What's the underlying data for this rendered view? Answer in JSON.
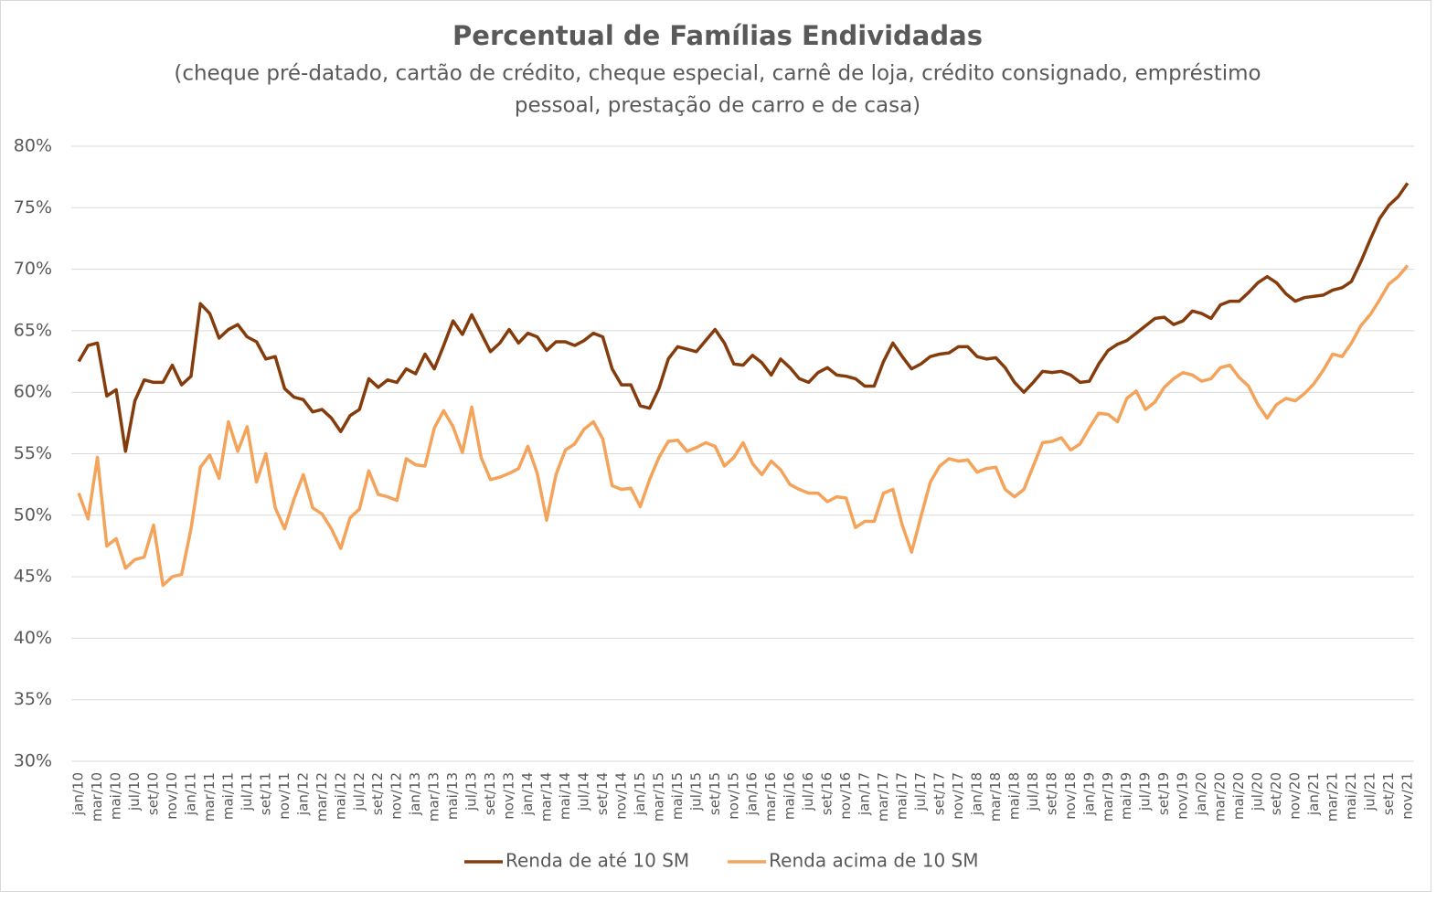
{
  "chart_data": {
    "type": "line",
    "title": "Percentual de Famílias Endividadas",
    "subtitle": [
      "(cheque pré-datado, cartão de crédito, cheque especial, carnê de loja, crédito consignado, empréstimo",
      "pessoal, prestação de carro e de casa)"
    ],
    "categories": [
      "jan/10",
      null,
      "mar/10",
      null,
      "mai/10",
      null,
      "jul/10",
      null,
      "set/10",
      null,
      "nov/10",
      null,
      "jan/11",
      null,
      "mar/11",
      null,
      "mai/11",
      null,
      "jul/11",
      null,
      "set/11",
      null,
      "nov/11",
      null,
      "jan/12",
      null,
      "mar/12",
      null,
      "mai/12",
      null,
      "jul/12",
      null,
      "set/12",
      null,
      "nov/12",
      null,
      "jan/13",
      null,
      "mar/13",
      null,
      "mai/13",
      null,
      "jul/13",
      null,
      "set/13",
      null,
      "nov/13",
      null,
      "jan/14",
      null,
      "mar/14",
      null,
      "mai/14",
      null,
      "jul/14",
      null,
      "set/14",
      null,
      "nov/14",
      null,
      "jan/15",
      null,
      "mar/15",
      null,
      "mai/15",
      null,
      "jul/15",
      null,
      "set/15",
      null,
      "nov/15",
      null,
      "jan/16",
      null,
      "mar/16",
      null,
      "mai/16",
      null,
      "jul/16",
      null,
      "set/16",
      null,
      "nov/16",
      null,
      "jan/17",
      null,
      "mar/17",
      null,
      "mai/17",
      null,
      "jul/17",
      null,
      "set/17",
      null,
      "nov/17",
      null,
      "jan/18",
      null,
      "mar/18",
      null,
      "mai/18",
      null,
      "jul/18",
      null,
      "set/18",
      null,
      "nov/18",
      null,
      "jan/19",
      null,
      "mar/19",
      null,
      "mai/19",
      null,
      "jul/19",
      null,
      "set/19",
      null,
      "nov/19",
      null,
      "jan/20",
      null,
      "mar/20",
      null,
      "mai/20",
      null,
      "jul/20",
      null,
      "set/20",
      null,
      "nov/20",
      null,
      "jan/21",
      null,
      "mar/21",
      null,
      "mai/21",
      null,
      "jul/21",
      null,
      "set/21",
      null,
      "nov/21"
    ],
    "series": [
      {
        "name": "Renda de até 10 SM",
        "color": "#843c0c",
        "values": [
          62.5,
          63.8,
          64.0,
          59.7,
          60.2,
          55.2,
          59.3,
          61.0,
          60.8,
          60.8,
          62.2,
          60.6,
          61.3,
          67.2,
          66.4,
          64.4,
          65.1,
          65.5,
          64.5,
          64.1,
          62.7,
          62.9,
          60.3,
          59.6,
          59.4,
          58.4,
          58.6,
          57.9,
          56.8,
          58.1,
          58.6,
          61.1,
          60.4,
          61.0,
          60.8,
          61.9,
          61.5,
          63.1,
          61.9,
          63.8,
          65.8,
          64.7,
          66.3,
          64.8,
          63.3,
          64.0,
          65.1,
          64.0,
          64.8,
          64.5,
          63.4,
          64.1,
          64.1,
          63.8,
          64.2,
          64.8,
          64.5,
          61.9,
          60.6,
          60.6,
          58.9,
          58.7,
          60.3,
          62.7,
          63.7,
          63.5,
          63.3,
          64.2,
          65.1,
          64.0,
          62.3,
          62.2,
          63.0,
          62.4,
          61.4,
          62.7,
          62.0,
          61.1,
          60.8,
          61.6,
          62.0,
          61.4,
          61.3,
          61.1,
          60.5,
          60.5,
          62.5,
          64.0,
          62.9,
          61.9,
          62.3,
          62.9,
          63.1,
          63.2,
          63.7,
          63.7,
          62.9,
          62.7,
          62.8,
          62.0,
          60.8,
          60.0,
          60.8,
          61.7,
          61.6,
          61.7,
          61.4,
          60.8,
          60.9,
          62.3,
          63.4,
          63.9,
          64.2,
          64.8,
          65.4,
          66.0,
          66.1,
          65.5,
          65.8,
          66.6,
          66.4,
          66.0,
          67.1,
          67.4,
          67.4,
          68.1,
          68.9,
          69.4,
          68.9,
          68.0,
          67.4,
          67.7,
          67.8,
          67.9,
          68.3,
          68.5,
          69.0,
          70.6,
          72.4,
          74.1,
          75.2,
          75.9,
          77.0
        ]
      },
      {
        "name": "Renda acima de 10 SM",
        "color": "#f4a35a",
        "values": [
          51.8,
          49.7,
          54.7,
          47.5,
          48.1,
          45.7,
          46.4,
          46.6,
          49.2,
          44.3,
          45.0,
          45.2,
          48.9,
          53.9,
          54.9,
          53.0,
          57.6,
          55.2,
          57.2,
          52.7,
          55.0,
          50.6,
          48.9,
          51.3,
          53.3,
          50.6,
          50.1,
          48.9,
          47.3,
          49.8,
          50.5,
          53.6,
          51.7,
          51.5,
          51.2,
          54.6,
          54.1,
          54.0,
          57.1,
          58.5,
          57.2,
          55.1,
          58.8,
          54.7,
          52.9,
          53.1,
          53.4,
          53.8,
          55.6,
          53.4,
          49.6,
          53.3,
          55.3,
          55.8,
          57.0,
          57.6,
          56.2,
          52.4,
          52.1,
          52.2,
          50.7,
          52.9,
          54.7,
          56.0,
          56.1,
          55.2,
          55.5,
          55.9,
          55.6,
          54.0,
          54.7,
          55.9,
          54.2,
          53.3,
          54.4,
          53.7,
          52.5,
          52.1,
          51.8,
          51.8,
          51.1,
          51.5,
          51.4,
          49.0,
          49.5,
          49.5,
          51.8,
          52.1,
          49.2,
          47.0,
          49.9,
          52.7,
          54.0,
          54.6,
          54.4,
          54.5,
          53.5,
          53.8,
          53.9,
          52.1,
          51.5,
          52.1,
          54.0,
          55.9,
          56.0,
          56.3,
          55.3,
          55.8,
          57.1,
          58.3,
          58.2,
          57.6,
          59.5,
          60.1,
          58.6,
          59.2,
          60.4,
          61.1,
          61.6,
          61.4,
          60.9,
          61.1,
          62.0,
          62.2,
          61.2,
          60.5,
          59.0,
          57.9,
          59.0,
          59.5,
          59.3,
          59.9,
          60.7,
          61.8,
          63.1,
          62.9,
          64.0,
          65.4,
          66.3,
          67.5,
          68.8,
          69.4,
          70.3
        ]
      }
    ],
    "ylim": [
      30,
      80
    ],
    "yticks": [
      {
        "value": 30,
        "label": "30%"
      },
      {
        "value": 35,
        "label": "35%"
      },
      {
        "value": 40,
        "label": "40%"
      },
      {
        "value": 45,
        "label": "45%"
      },
      {
        "value": 50,
        "label": "50%"
      },
      {
        "value": 55,
        "label": "55%"
      },
      {
        "value": 60,
        "label": "60%"
      },
      {
        "value": 65,
        "label": "65%"
      },
      {
        "value": 70,
        "label": "70%"
      },
      {
        "value": 75,
        "label": "75%"
      },
      {
        "value": 80,
        "label": "80%"
      }
    ],
    "grid": true,
    "legend": "bottom"
  }
}
